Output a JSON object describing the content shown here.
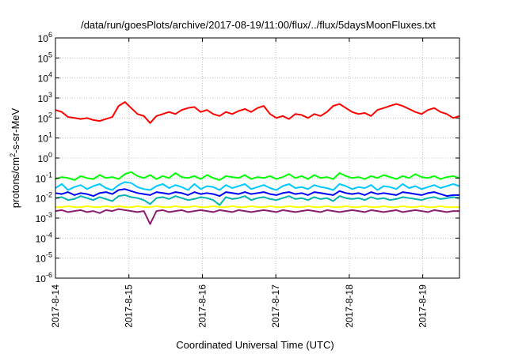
{
  "chart_data": {
    "type": "line",
    "title": "/data/run/goesPlots/archive/2017-08-19/11:00/flux/../flux/5daysMoonFluxes.txt",
    "xlabel": "Coordinated Universal Time (UTC)",
    "ylabel_base": "protons/cm",
    "ylabel_sup": "2",
    "ylabel_rest": "-s-sr-MeV",
    "x_ticks": [
      "2017-8-14",
      "2017-8-15",
      "2017-8-16",
      "2017-8-17",
      "2017-8-18",
      "2017-8-19"
    ],
    "x_range_days": [
      0,
      5.5
    ],
    "y_scale": "log",
    "y_range": [
      1e-06,
      1000000.0
    ],
    "y_ticks": [
      {
        "base": "10",
        "exp": "6"
      },
      {
        "base": "10",
        "exp": "5"
      },
      {
        "base": "10",
        "exp": "4"
      },
      {
        "base": "10",
        "exp": "3"
      },
      {
        "base": "10",
        "exp": "2"
      },
      {
        "base": "10",
        "exp": "1"
      },
      {
        "base": "10",
        "exp": "0"
      },
      {
        "base": "10",
        "exp": "-1"
      },
      {
        "base": "10",
        "exp": "-2"
      },
      {
        "base": "10",
        "exp": "-3"
      },
      {
        "base": "10",
        "exp": "-4"
      },
      {
        "base": "10",
        "exp": "-5"
      },
      {
        "base": "10",
        "exp": "-6"
      }
    ],
    "grid": true,
    "series": [
      {
        "color": "#ff0000",
        "log_values": [
          2.4,
          2.3,
          2.05,
          2.0,
          1.95,
          2.0,
          1.9,
          1.85,
          1.95,
          2.05,
          2.6,
          2.8,
          2.5,
          2.2,
          2.1,
          1.75,
          2.1,
          2.2,
          2.3,
          2.2,
          2.4,
          2.5,
          2.55,
          2.3,
          2.4,
          2.2,
          2.1,
          2.3,
          2.2,
          2.35,
          2.45,
          2.3,
          2.5,
          2.6,
          2.2,
          2.0,
          2.1,
          1.95,
          2.2,
          2.15,
          2.0,
          2.2,
          2.1,
          2.3,
          2.6,
          2.7,
          2.5,
          2.3,
          2.2,
          2.25,
          2.1,
          2.4,
          2.5,
          2.6,
          2.7,
          2.6,
          2.45,
          2.3,
          2.2,
          2.4,
          2.5,
          2.3,
          2.2,
          2.0,
          2.1
        ]
      },
      {
        "color": "#00ff00",
        "log_values": [
          -1.05,
          -0.95,
          -1.0,
          -1.1,
          -0.9,
          -1.0,
          -1.05,
          -0.85,
          -1.0,
          -0.95,
          -1.05,
          -0.8,
          -0.7,
          -0.9,
          -1.0,
          -0.85,
          -1.05,
          -0.9,
          -1.0,
          -0.75,
          -0.95,
          -1.0,
          -0.9,
          -1.05,
          -0.85,
          -1.0,
          -1.1,
          -0.9,
          -0.95,
          -1.0,
          -0.85,
          -1.05,
          -0.95,
          -1.0,
          -0.9,
          -1.05,
          -0.95,
          -0.8,
          -1.0,
          -0.9,
          -1.05,
          -0.85,
          -1.0,
          -0.95,
          -1.05,
          -0.75,
          -0.9,
          -1.0,
          -0.95,
          -1.05,
          -0.9,
          -1.0,
          -0.85,
          -0.95,
          -1.05,
          -0.9,
          -1.0,
          -0.8,
          -0.95,
          -1.0,
          -0.9,
          -1.05,
          -0.95,
          -0.9,
          -1.0
        ]
      },
      {
        "color": "#00c8ff",
        "log_values": [
          -1.5,
          -1.3,
          -1.6,
          -1.45,
          -1.35,
          -1.55,
          -1.4,
          -1.3,
          -1.5,
          -1.6,
          -1.35,
          -1.2,
          -1.25,
          -1.45,
          -1.55,
          -1.6,
          -1.4,
          -1.3,
          -1.5,
          -1.35,
          -1.45,
          -1.6,
          -1.3,
          -1.55,
          -1.4,
          -1.45,
          -1.6,
          -1.35,
          -1.5,
          -1.4,
          -1.3,
          -1.55,
          -1.45,
          -1.35,
          -1.5,
          -1.6,
          -1.4,
          -1.3,
          -1.5,
          -1.45,
          -1.55,
          -1.35,
          -1.45,
          -1.5,
          -1.6,
          -1.3,
          -1.4,
          -1.55,
          -1.45,
          -1.5,
          -1.35,
          -1.6,
          -1.4,
          -1.45,
          -1.55,
          -1.3,
          -1.5,
          -1.4,
          -1.55,
          -1.45,
          -1.35,
          -1.5,
          -1.4,
          -1.3,
          -1.4
        ]
      },
      {
        "color": "#00b4b4",
        "log_values": [
          -2.0,
          -1.95,
          -2.1,
          -2.05,
          -1.9,
          -2.0,
          -2.1,
          -1.95,
          -2.05,
          -2.15,
          -1.9,
          -1.85,
          -1.95,
          -2.0,
          -2.1,
          -2.3,
          -2.0,
          -1.95,
          -2.05,
          -1.9,
          -2.0,
          -2.1,
          -2.05,
          -1.95,
          -2.0,
          -2.1,
          -2.35,
          -1.95,
          -2.05,
          -2.0,
          -1.9,
          -2.1,
          -2.0,
          -1.95,
          -2.05,
          -2.1,
          -2.0,
          -1.9,
          -2.05,
          -2.0,
          -2.1,
          -1.95,
          -2.05,
          -2.0,
          -2.15,
          -1.9,
          -2.0,
          -2.05,
          -2.0,
          -2.1,
          -1.95,
          -2.05,
          -2.0,
          -2.1,
          -2.05,
          -1.95,
          -2.0,
          -2.05,
          -2.1,
          -2.0,
          -1.95,
          -2.05,
          -2.0,
          -1.95,
          -2.0
        ]
      },
      {
        "color": "#0000ff",
        "log_values": [
          -1.75,
          -1.8,
          -1.7,
          -1.85,
          -1.75,
          -1.8,
          -1.9,
          -1.75,
          -1.7,
          -1.8,
          -1.6,
          -1.55,
          -1.65,
          -1.75,
          -1.8,
          -1.85,
          -1.7,
          -1.75,
          -1.8,
          -1.7,
          -1.75,
          -1.85,
          -1.7,
          -1.8,
          -1.75,
          -1.8,
          -1.9,
          -1.7,
          -1.75,
          -1.8,
          -1.7,
          -1.8,
          -1.75,
          -1.7,
          -1.8,
          -1.85,
          -1.75,
          -1.7,
          -1.8,
          -1.75,
          -1.85,
          -1.7,
          -1.75,
          -1.8,
          -1.85,
          -1.65,
          -1.75,
          -1.8,
          -1.75,
          -1.85,
          -1.7,
          -1.8,
          -1.75,
          -1.8,
          -1.85,
          -1.7,
          -1.75,
          -1.8,
          -1.85,
          -1.75,
          -1.7,
          -1.8,
          -1.9,
          -1.85,
          -1.85
        ]
      },
      {
        "color": "#ffff00",
        "log_values": [
          -2.45,
          -2.45,
          -2.4,
          -2.45,
          -2.45,
          -2.4,
          -2.45,
          -2.45,
          -2.4,
          -2.45,
          -2.4,
          -2.45,
          -2.45,
          -2.4,
          -2.45,
          -2.45,
          -2.4,
          -2.45,
          -2.45,
          -2.4,
          -2.45,
          -2.45,
          -2.4,
          -2.45,
          -2.45,
          -2.4,
          -2.45,
          -2.45,
          -2.4,
          -2.45,
          -2.45,
          -2.4,
          -2.45,
          -2.45,
          -2.4,
          -2.45,
          -2.45,
          -2.4,
          -2.45,
          -2.45,
          -2.4,
          -2.45,
          -2.45,
          -2.4,
          -2.45,
          -2.45,
          -2.4,
          -2.45,
          -2.45,
          -2.4,
          -2.45,
          -2.45,
          -2.4,
          -2.45,
          -2.45,
          -2.4,
          -2.45,
          -2.45,
          -2.4,
          -2.45,
          -2.45,
          -2.4,
          -2.45,
          -2.45,
          -2.45
        ]
      },
      {
        "color": "#8b1f6e",
        "log_values": [
          -2.65,
          -2.6,
          -2.7,
          -2.65,
          -2.6,
          -2.7,
          -2.65,
          -2.75,
          -2.6,
          -2.65,
          -2.55,
          -2.6,
          -2.65,
          -2.7,
          -2.65,
          -3.3,
          -2.65,
          -2.6,
          -2.7,
          -2.65,
          -2.6,
          -2.7,
          -2.65,
          -2.6,
          -2.65,
          -2.7,
          -2.6,
          -2.65,
          -2.7,
          -2.6,
          -2.65,
          -2.7,
          -2.65,
          -2.6,
          -2.65,
          -2.7,
          -2.6,
          -2.65,
          -2.7,
          -2.65,
          -2.6,
          -2.65,
          -2.7,
          -2.6,
          -2.65,
          -2.7,
          -2.65,
          -2.6,
          -2.65,
          -2.7,
          -2.6,
          -2.65,
          -2.7,
          -2.65,
          -2.6,
          -2.7,
          -2.65,
          -2.6,
          -2.65,
          -2.7,
          -2.6,
          -2.65,
          -2.7,
          -2.65,
          -2.65
        ]
      }
    ]
  }
}
